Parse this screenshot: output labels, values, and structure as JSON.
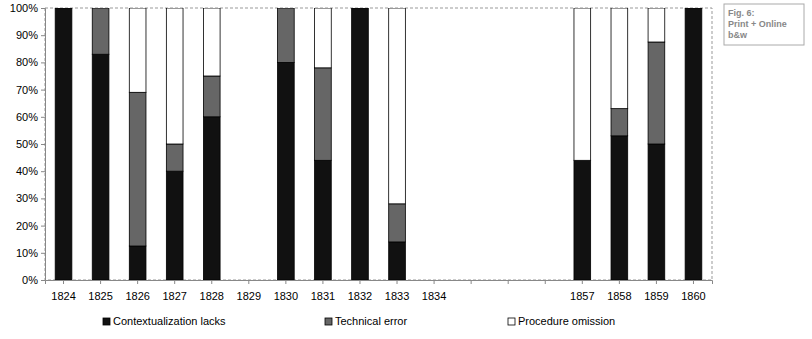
{
  "chart_data": {
    "type": "bar",
    "stacked": true,
    "grid": false,
    "legend": "bottom",
    "annotations": [
      "Fig. 6:",
      "Print + Online",
      "b&w"
    ],
    "categories": [
      "1824",
      "1825",
      "1826",
      "1827",
      "1828",
      "1829",
      "1830",
      "1831",
      "1832",
      "1833",
      "1834",
      null,
      null,
      null,
      "1857",
      "1858",
      "1859",
      "1860"
    ],
    "series": [
      {
        "name": "Contextualization lacks",
        "color": "#111111",
        "values": [
          100,
          83,
          12.5,
          40,
          60,
          null,
          80,
          44,
          100,
          14,
          null,
          null,
          null,
          null,
          44,
          53,
          50,
          100
        ]
      },
      {
        "name": "Technical error",
        "color": "#666666",
        "values": [
          0,
          17,
          56.5,
          10,
          15,
          null,
          20,
          34,
          0,
          14,
          null,
          null,
          null,
          null,
          0,
          10,
          37.5,
          0
        ]
      },
      {
        "name": "Procedure omission",
        "color": "#ffffff",
        "values": [
          0,
          0,
          31,
          50,
          25,
          null,
          0,
          22,
          0,
          72,
          null,
          null,
          null,
          null,
          56,
          37,
          12.5,
          0
        ]
      }
    ],
    "ylim": [
      0,
      100
    ],
    "yticks": [
      {
        "value": 0,
        "label": "0%"
      },
      {
        "value": 10,
        "label": "10%"
      },
      {
        "value": 20,
        "label": "20%"
      },
      {
        "value": 30,
        "label": "30%"
      },
      {
        "value": 40,
        "label": "40%"
      },
      {
        "value": 50,
        "label": "50%"
      },
      {
        "value": 60,
        "label": "60%"
      },
      {
        "value": 70,
        "label": "70%"
      },
      {
        "value": 80,
        "label": "80%"
      },
      {
        "value": 90,
        "label": "90%"
      },
      {
        "value": 100,
        "label": "100%"
      }
    ]
  }
}
